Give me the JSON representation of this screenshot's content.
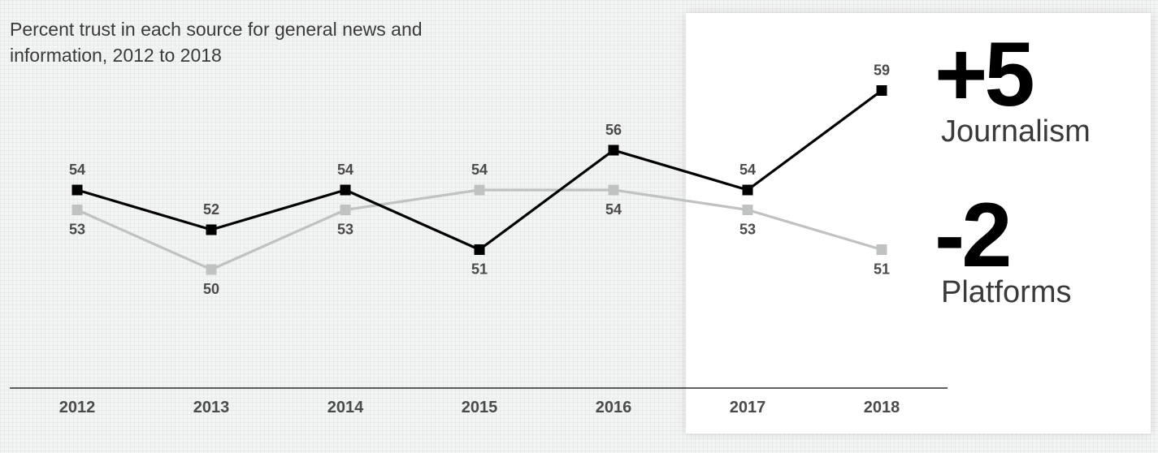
{
  "title": "Percent trust in each source for general news and information, 2012 to 2018",
  "summary": {
    "journalism": {
      "delta": "+5",
      "label": "Journalism"
    },
    "platforms": {
      "delta": "-2",
      "label": "Platforms"
    }
  },
  "colors": {
    "journalism": "#000000",
    "platforms": "#c0c2c2",
    "label": "#4a4a4a",
    "axis": "#000000"
  },
  "chart_data": {
    "type": "line",
    "title": "Percent trust in each source for general news and information, 2012 to 2018",
    "x": [
      "2012",
      "2013",
      "2014",
      "2015",
      "2016",
      "2017",
      "2018"
    ],
    "xlabel": "",
    "ylabel": "",
    "ylim": [
      49,
      60
    ],
    "grid": false,
    "legend": "none",
    "series": [
      {
        "name": "Journalism",
        "values": [
          54,
          52,
          54,
          51,
          56,
          54,
          59
        ]
      },
      {
        "name": "Platforms",
        "values": [
          53,
          50,
          53,
          54,
          54,
          53,
          51
        ]
      }
    ]
  }
}
